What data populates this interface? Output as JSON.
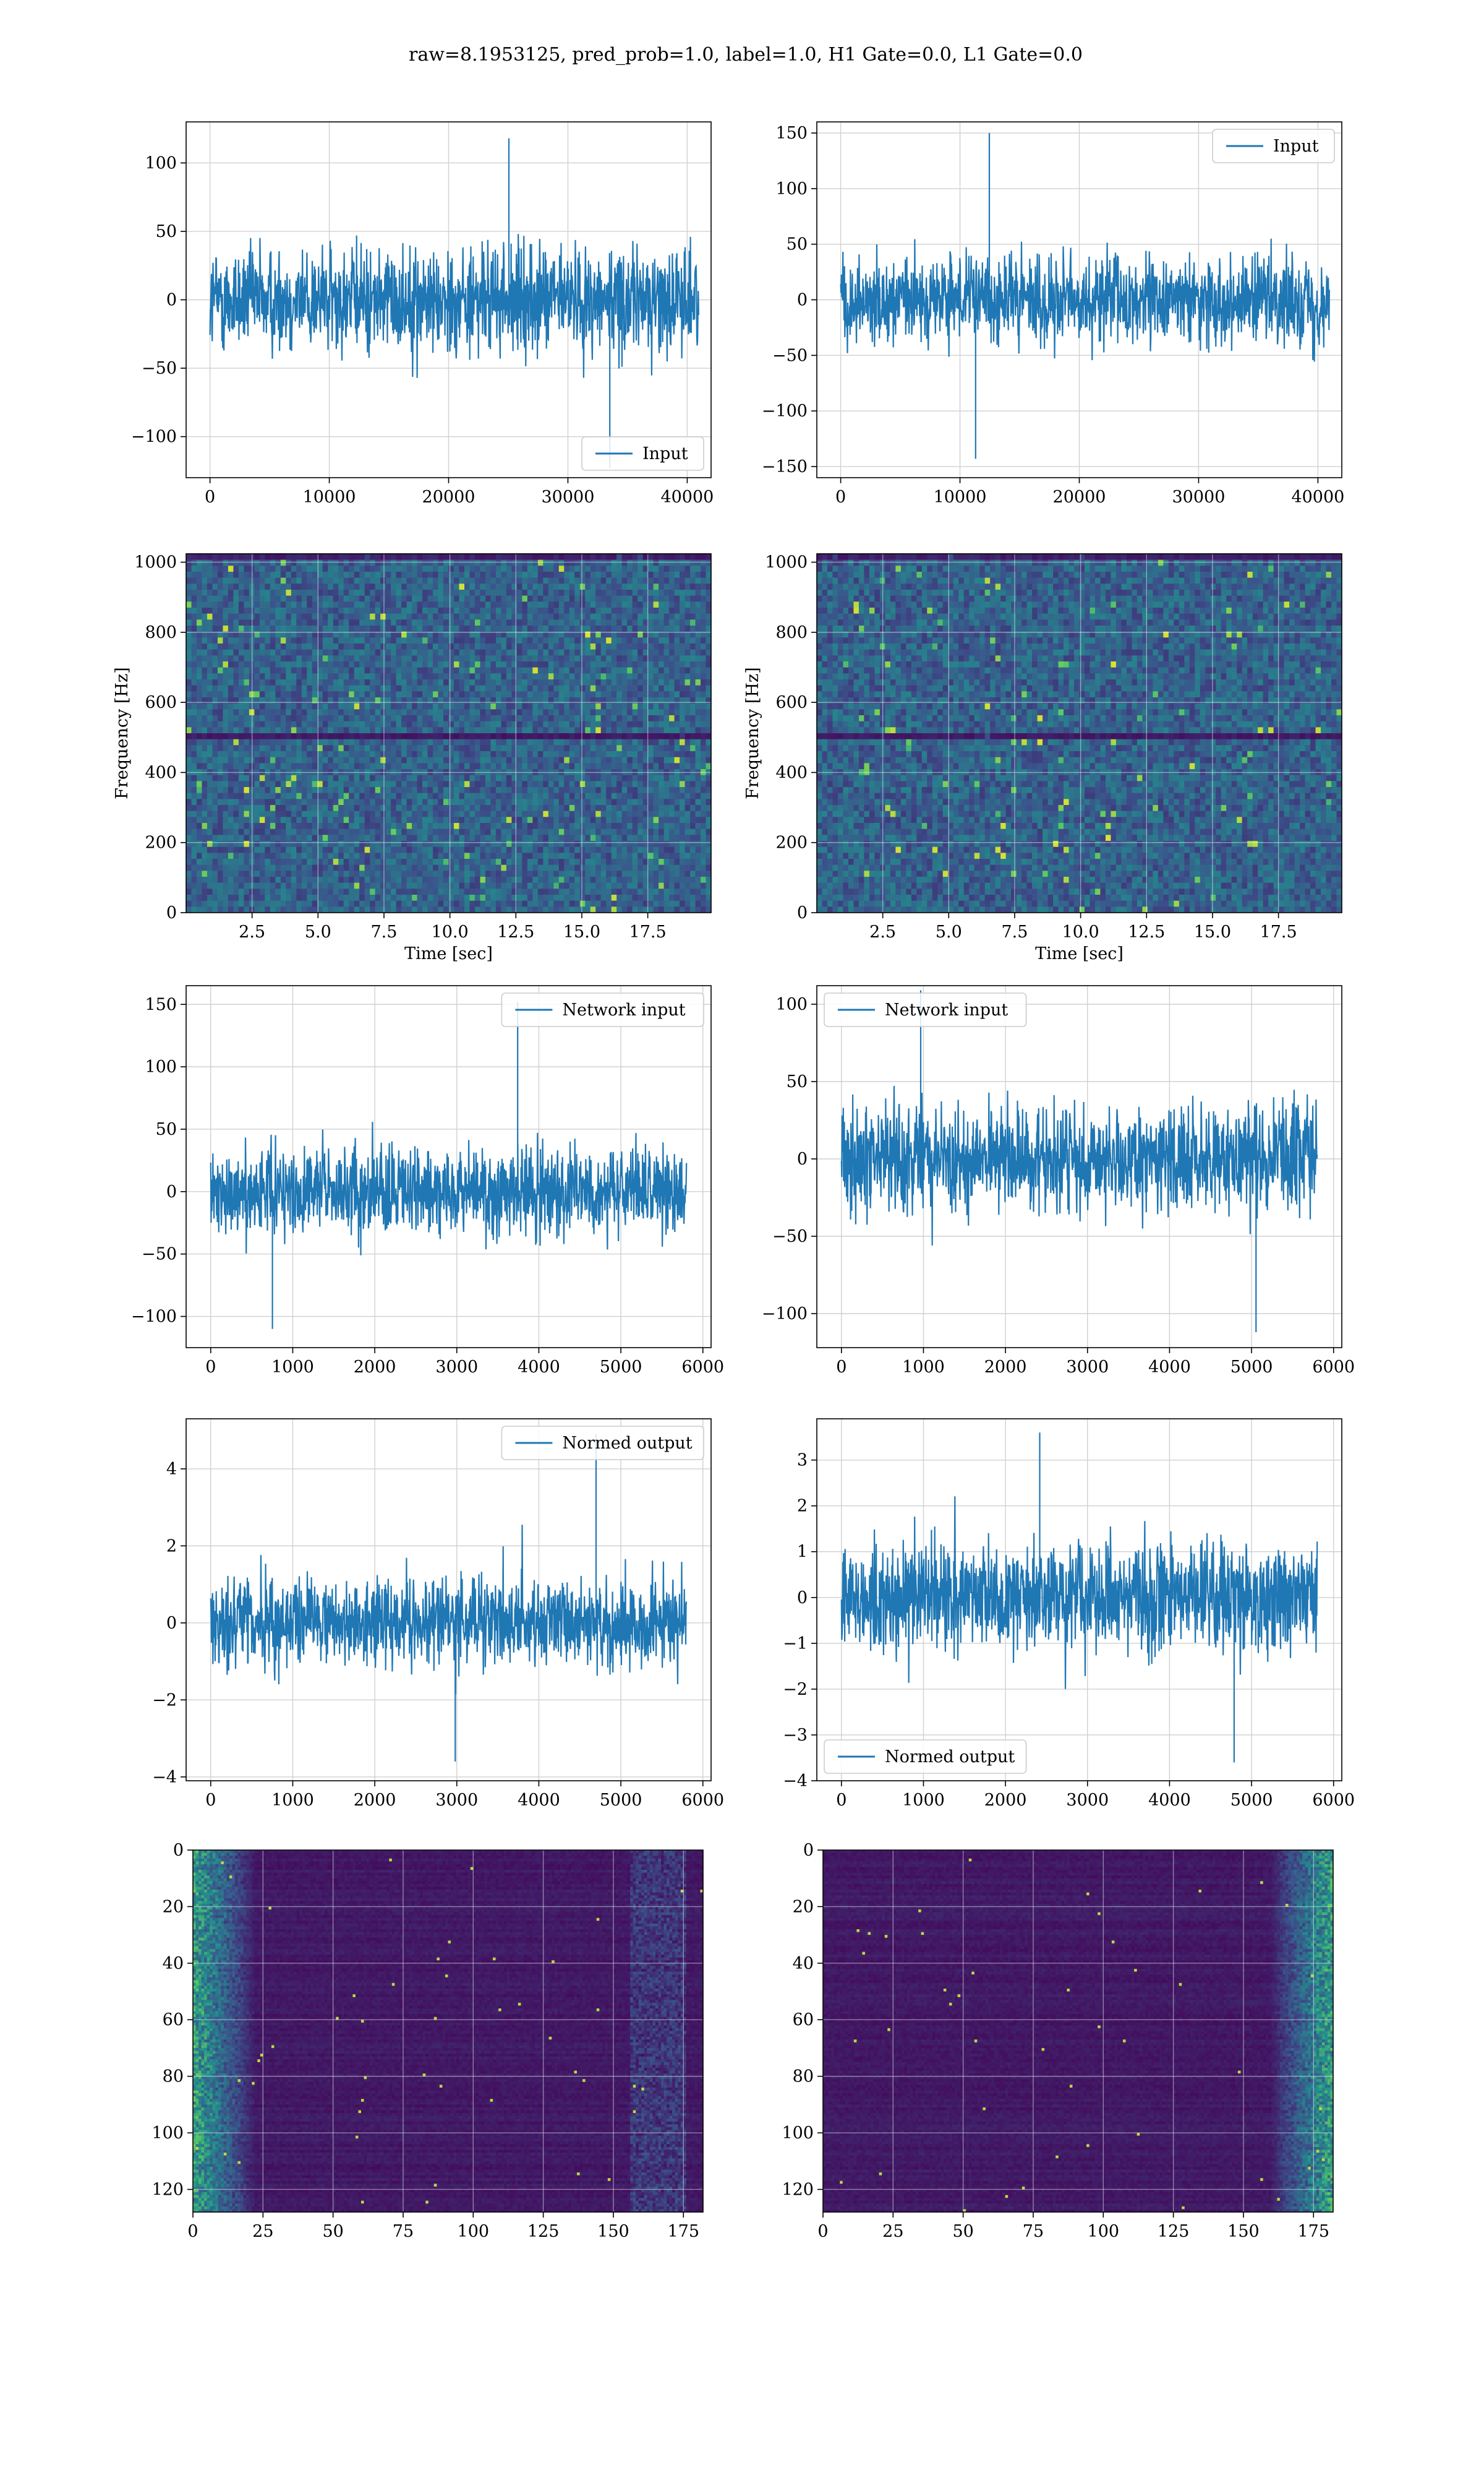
{
  "figure": {
    "suptitle": "raw=8.1953125, pred_prob=1.0, label=1.0, H1 Gate=0.0, L1 Gate=0.0"
  },
  "colors": {
    "line": "#1f77b4",
    "grid": "#d0d0d0",
    "viridis": [
      "#440154",
      "#3b528b",
      "#21918c",
      "#5ec962",
      "#fde725"
    ]
  },
  "chart_data": [
    {
      "id": "input-h1",
      "type": "line",
      "title": "",
      "xlabel": "",
      "ylabel": "",
      "xlim": [
        -2000,
        42000
      ],
      "ylim": [
        -130,
        130
      ],
      "xticks": [
        0,
        10000,
        20000,
        30000,
        40000
      ],
      "yticks": [
        -100,
        -50,
        0,
        50,
        100
      ],
      "grid": true,
      "legend_location": "lower-right",
      "series": [
        {
          "name": "Input",
          "signal": "noise",
          "x_range": [
            0,
            40960
          ],
          "typical_range": [
            -50,
            50
          ],
          "max": 118,
          "min": -123
        }
      ]
    },
    {
      "id": "input-l1",
      "type": "line",
      "title": "",
      "xlabel": "",
      "ylabel": "",
      "xlim": [
        -2000,
        42000
      ],
      "ylim": [
        -160,
        160
      ],
      "xticks": [
        0,
        10000,
        20000,
        30000,
        40000
      ],
      "yticks": [
        -150,
        -100,
        -50,
        0,
        50,
        100,
        150
      ],
      "grid": true,
      "legend_location": "upper-right",
      "series": [
        {
          "name": "Input",
          "signal": "noise",
          "x_range": [
            0,
            40960
          ],
          "typical_range": [
            -50,
            50
          ],
          "max": 150,
          "min": -143
        }
      ]
    },
    {
      "id": "spectrogram-h1",
      "type": "heatmap",
      "title": "",
      "xlabel": "Time [sec]",
      "ylabel": "Frequency [Hz]",
      "xlim": [
        0,
        19.9
      ],
      "ylim": [
        0,
        1024
      ],
      "xticks": [
        2.5,
        5.0,
        7.5,
        10.0,
        12.5,
        15.0,
        17.5
      ],
      "yticks": [
        0,
        200,
        400,
        600,
        800,
        1000
      ],
      "xtick_labels": [
        "2.5",
        "5.0",
        "7.5",
        "10.0",
        "12.5",
        "15.0",
        "17.5"
      ],
      "colormap": "viridis",
      "grid": true,
      "features": {
        "dark_band_hz": [
          490,
          520
        ],
        "top_band_hz": [
          1000,
          1024
        ]
      }
    },
    {
      "id": "spectrogram-l1",
      "type": "heatmap",
      "title": "",
      "xlabel": "Time [sec]",
      "ylabel": "Frequency [Hz]",
      "xlim": [
        0,
        19.9
      ],
      "ylim": [
        0,
        1024
      ],
      "xticks": [
        2.5,
        5.0,
        7.5,
        10.0,
        12.5,
        15.0,
        17.5
      ],
      "yticks": [
        0,
        200,
        400,
        600,
        800,
        1000
      ],
      "xtick_labels": [
        "2.5",
        "5.0",
        "7.5",
        "10.0",
        "12.5",
        "15.0",
        "17.5"
      ],
      "colormap": "viridis",
      "grid": true,
      "features": {
        "dark_band_hz": [
          490,
          520
        ],
        "top_band_hz": [
          1000,
          1024
        ]
      }
    },
    {
      "id": "network-input-h1",
      "type": "line",
      "title": "",
      "xlabel": "",
      "ylabel": "",
      "xlim": [
        -300,
        6100
      ],
      "ylim": [
        -125,
        165
      ],
      "xticks": [
        0,
        1000,
        2000,
        3000,
        4000,
        5000,
        6000
      ],
      "yticks": [
        -100,
        -50,
        0,
        50,
        100,
        150
      ],
      "grid": true,
      "legend_location": "upper-right",
      "series": [
        {
          "name": "Network input",
          "signal": "noise",
          "x_range": [
            0,
            5800
          ],
          "typical_range": [
            -45,
            45
          ],
          "max": 152,
          "min": -110
        }
      ]
    },
    {
      "id": "network-input-l1",
      "type": "line",
      "title": "",
      "xlabel": "",
      "ylabel": "",
      "xlim": [
        -300,
        6100
      ],
      "ylim": [
        -122,
        112
      ],
      "xticks": [
        0,
        1000,
        2000,
        3000,
        4000,
        5000,
        6000
      ],
      "yticks": [
        -100,
        -50,
        0,
        50,
        100
      ],
      "grid": true,
      "legend_location": "upper-left",
      "series": [
        {
          "name": "Network input",
          "signal": "noise",
          "x_range": [
            0,
            5800
          ],
          "typical_range": [
            -45,
            45
          ],
          "max": 109,
          "min": -112
        }
      ]
    },
    {
      "id": "normed-output-h1",
      "type": "line",
      "title": "",
      "xlabel": "",
      "ylabel": "",
      "xlim": [
        -300,
        6100
      ],
      "ylim": [
        -4.1,
        5.3
      ],
      "xticks": [
        0,
        1000,
        2000,
        3000,
        4000,
        5000,
        6000
      ],
      "yticks": [
        -4,
        -2,
        0,
        2,
        4
      ],
      "grid": true,
      "legend_location": "upper-right",
      "series": [
        {
          "name": "Normed output",
          "signal": "noise",
          "x_range": [
            0,
            5800
          ],
          "typical_range": [
            -1.5,
            1.5
          ],
          "max": 4.9,
          "min": -3.6
        }
      ]
    },
    {
      "id": "normed-output-l1",
      "type": "line",
      "title": "",
      "xlabel": "",
      "ylabel": "",
      "xlim": [
        -300,
        6100
      ],
      "ylim": [
        -4.0,
        3.9
      ],
      "xticks": [
        0,
        1000,
        2000,
        3000,
        4000,
        5000,
        6000
      ],
      "yticks": [
        -4,
        -3,
        -2,
        -1,
        0,
        1,
        2,
        3
      ],
      "grid": true,
      "legend_location": "lower-left",
      "series": [
        {
          "name": "Normed output",
          "signal": "noise",
          "x_range": [
            0,
            5800
          ],
          "typical_range": [
            -1.5,
            1.5
          ],
          "max": 3.6,
          "min": -3.6
        }
      ]
    },
    {
      "id": "feature-map-h1",
      "type": "heatmap",
      "title": "",
      "xlabel": "",
      "ylabel": "",
      "xlim": [
        0,
        182
      ],
      "ylim": [
        128,
        0
      ],
      "xticks": [
        0,
        25,
        50,
        75,
        100,
        125,
        150,
        175
      ],
      "yticks": [
        0,
        20,
        40,
        60,
        80,
        100,
        120
      ],
      "colormap": "viridis",
      "grid": true,
      "features": {
        "bright_regions": [
          "left edge",
          "columns 155-175"
        ]
      }
    },
    {
      "id": "feature-map-l1",
      "type": "heatmap",
      "title": "",
      "xlabel": "",
      "ylabel": "",
      "xlim": [
        0,
        182
      ],
      "ylim": [
        128,
        0
      ],
      "xticks": [
        0,
        25,
        50,
        75,
        100,
        125,
        150,
        175
      ],
      "yticks": [
        0,
        20,
        40,
        60,
        80,
        100,
        120
      ],
      "colormap": "viridis",
      "grid": true,
      "features": {
        "bright_regions": [
          "right edge"
        ]
      }
    }
  ]
}
